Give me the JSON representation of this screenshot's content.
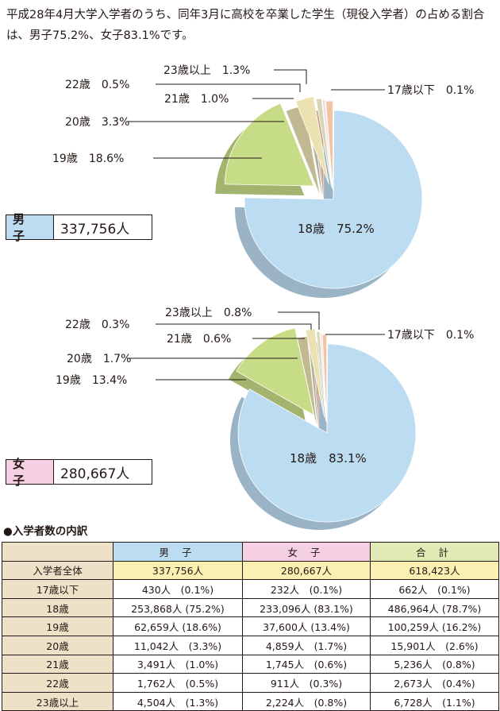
{
  "intro_text": "平成28年4月大学入学者のうち、同年3月に高校を卒業した学生（現役入学者）の占める割合は、男子75.2%、女子83.1%です。",
  "colors": {
    "age_17_under": "#d5dbe2",
    "age_18": "#bcdcf2",
    "age_19": "#c7dc86",
    "age_20": "#ebe1b1",
    "age_21": "#d7d7b5",
    "age_22": "#f4d8e4",
    "age_23_over": "#f2c4a3",
    "male_header": "#bcdcf2",
    "female_header": "#f5cfe2",
    "total_header": "#e0eab4"
  },
  "chart_data": [
    {
      "type": "pie",
      "title": "",
      "slices": [
        {
          "label": "17歳以下",
          "value": 0.1,
          "label_text": "17歳以下　0.1%"
        },
        {
          "label": "18歳",
          "value": 75.2,
          "label_text": "18歳　75.2%"
        },
        {
          "label": "19歳",
          "value": 18.6,
          "label_text": "19歳　18.6%"
        },
        {
          "label": "20歳",
          "value": 3.3,
          "label_text": "20歳　3.3%"
        },
        {
          "label": "21歳",
          "value": 1.0,
          "label_text": "21歳　1.0%"
        },
        {
          "label": "22歳",
          "value": 0.5,
          "label_text": "22歳　0.5%"
        },
        {
          "label": "23歳以上",
          "value": 1.3,
          "label_text": "23歳以上　1.3%"
        }
      ],
      "total_gender": "男 子",
      "total_value": "337,756人"
    },
    {
      "type": "pie",
      "title": "",
      "slices": [
        {
          "label": "17歳以下",
          "value": 0.1,
          "label_text": "17歳以下　0.1%"
        },
        {
          "label": "18歳",
          "value": 83.1,
          "label_text": "18歳　83.1%"
        },
        {
          "label": "19歳",
          "value": 13.4,
          "label_text": "19歳　13.4%"
        },
        {
          "label": "20歳",
          "value": 1.7,
          "label_text": "20歳　1.7%"
        },
        {
          "label": "21歳",
          "value": 0.6,
          "label_text": "21歳　0.6%"
        },
        {
          "label": "22歳",
          "value": 0.3,
          "label_text": "22歳　0.3%"
        },
        {
          "label": "23歳以上",
          "value": 0.8,
          "label_text": "23歳以上　0.8%"
        }
      ],
      "total_gender": "女 子",
      "total_value": "280,667人"
    }
  ],
  "table": {
    "title": "●入学者数の内訳",
    "headers": [
      "",
      "男 子",
      "女 子",
      "合 計"
    ],
    "rows": [
      {
        "label": "入学者全体",
        "male": "337,756人",
        "female": "280,667人",
        "total": "618,423人"
      },
      {
        "label": "17歳以下",
        "male": "430人　(0.1%)",
        "female": "232人　(0.1%)",
        "total": "662人　(0.1%)"
      },
      {
        "label": "18歳",
        "male": "253,868人 (75.2%)",
        "female": "233,096人 (83.1%)",
        "total": "486,964人 (78.7%)"
      },
      {
        "label": "19歳",
        "male": "62,659人 (18.6%)",
        "female": "37,600人 (13.4%)",
        "total": "100,259人 (16.2%)"
      },
      {
        "label": "20歳",
        "male": "11,042人　(3.3%)",
        "female": "4,859人　(1.7%)",
        "total": "15,901人　(2.6%)"
      },
      {
        "label": "21歳",
        "male": "3,491人　(1.0%)",
        "female": "1,745人　(0.6%)",
        "total": "5,236人　(0.8%)"
      },
      {
        "label": "22歳",
        "male": "1,762人　(0.5%)",
        "female": "911人　(0.3%)",
        "total": "2,673人　(0.4%)"
      },
      {
        "label": "23歳以上",
        "male": "4,504人　(1.3%)",
        "female": "2,224人　(0.8%)",
        "total": "6,728人　(1.1%)"
      }
    ]
  }
}
